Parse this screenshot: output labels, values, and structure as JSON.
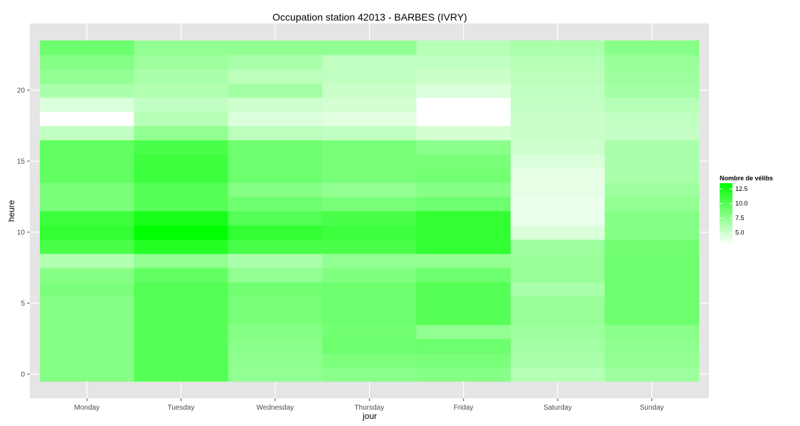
{
  "chart_data": {
    "type": "heatmap",
    "title": "Occupation station 42013 - BARBES (IVRY)",
    "xlabel": "jour",
    "ylabel": "heure",
    "x_categories": [
      "Monday",
      "Tuesday",
      "Wednesday",
      "Thursday",
      "Friday",
      "Saturday",
      "Sunday"
    ],
    "y_range": [
      -0.5,
      23.5
    ],
    "y_ticks": [
      0,
      5,
      10,
      15,
      20
    ],
    "legend": {
      "title": "Nombre de vélibs",
      "ticks": [
        5.0,
        7.5,
        10.0,
        12.5
      ],
      "tick_labels": [
        "5.0",
        "7.5",
        "10.0",
        "12.5"
      ],
      "min": 3.0,
      "max": 13.5,
      "low_color": "#ffffff",
      "high_color": "#00ff00",
      "position": "right"
    },
    "background": "#e5e5e5",
    "grid": true,
    "grid_color": "#ffffff",
    "hours": [
      0,
      1,
      2,
      3,
      4,
      5,
      6,
      7,
      8,
      9,
      10,
      11,
      12,
      13,
      14,
      15,
      16,
      17,
      18,
      19,
      20,
      21,
      22,
      23
    ],
    "values": [
      [
        8.0,
        10.0,
        7.5,
        7.8,
        8.0,
        6.0,
        7.0
      ],
      [
        8.0,
        10.0,
        7.6,
        8.4,
        8.5,
        6.5,
        7.4
      ],
      [
        8.0,
        10.0,
        7.8,
        9.0,
        9.0,
        6.8,
        7.6
      ],
      [
        8.0,
        10.0,
        8.0,
        8.8,
        7.5,
        7.0,
        7.8
      ],
      [
        8.0,
        10.0,
        8.5,
        9.0,
        10.0,
        7.2,
        9.0
      ],
      [
        8.0,
        10.0,
        8.5,
        9.0,
        10.0,
        7.2,
        9.0
      ],
      [
        8.4,
        10.0,
        8.8,
        9.0,
        10.0,
        6.5,
        9.0
      ],
      [
        8.0,
        9.5,
        7.5,
        8.2,
        9.0,
        7.2,
        9.0
      ],
      [
        6.2,
        7.5,
        6.5,
        7.5,
        7.5,
        7.2,
        9.0
      ],
      [
        10.5,
        12.0,
        10.5,
        10.5,
        11.5,
        7.0,
        8.8
      ],
      [
        11.5,
        13.5,
        11.5,
        11.0,
        11.5,
        4.5,
        8.0
      ],
      [
        11.0,
        12.5,
        10.0,
        10.5,
        11.5,
        3.8,
        8.0
      ],
      [
        8.5,
        10.0,
        9.0,
        8.5,
        9.0,
        3.8,
        7.5
      ],
      [
        8.5,
        10.0,
        8.0,
        7.5,
        8.0,
        4.0,
        7.0
      ],
      [
        9.5,
        11.0,
        9.0,
        8.5,
        8.8,
        4.0,
        6.5
      ],
      [
        9.5,
        11.0,
        9.0,
        8.5,
        8.5,
        4.5,
        6.5
      ],
      [
        9.5,
        10.5,
        9.0,
        8.5,
        7.8,
        5.0,
        6.5
      ],
      [
        5.5,
        7.5,
        5.8,
        5.5,
        4.8,
        5.2,
        5.4
      ],
      [
        3.0,
        6.0,
        4.5,
        4.2,
        3.0,
        5.2,
        5.6
      ],
      [
        4.5,
        5.5,
        5.0,
        4.8,
        3.0,
        5.4,
        6.0
      ],
      [
        6.5,
        6.2,
        6.8,
        5.2,
        4.5,
        5.6,
        6.8
      ],
      [
        7.5,
        6.5,
        5.8,
        5.6,
        5.2,
        5.8,
        7.0
      ],
      [
        8.0,
        7.0,
        6.5,
        5.6,
        5.5,
        6.0,
        7.2
      ],
      [
        9.0,
        7.5,
        7.5,
        7.5,
        6.0,
        6.5,
        8.0
      ]
    ]
  }
}
